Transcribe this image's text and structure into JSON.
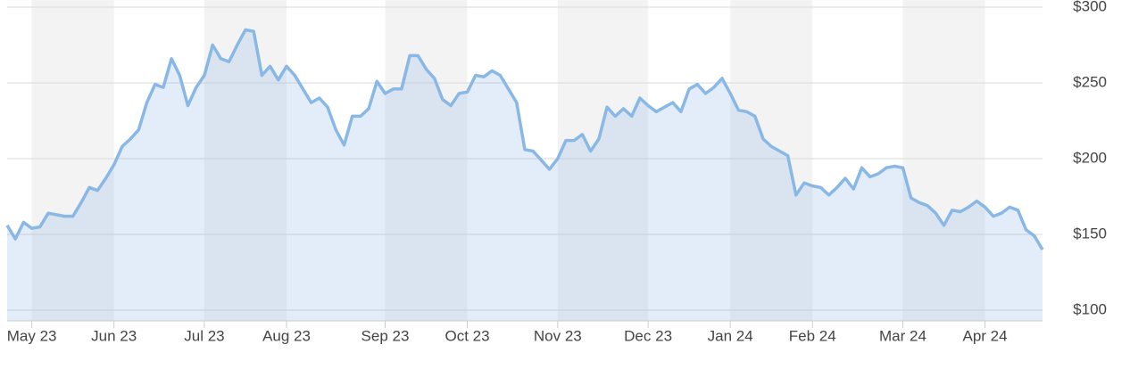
{
  "chart_data": {
    "type": "area-line",
    "categories": [
      null,
      null,
      null,
      "May 23",
      null,
      null,
      null,
      null,
      null,
      null,
      null,
      null,
      null,
      "Jun 23",
      null,
      null,
      null,
      null,
      null,
      null,
      null,
      null,
      null,
      null,
      "Jul 23",
      null,
      null,
      null,
      null,
      null,
      null,
      null,
      null,
      null,
      "Aug 23",
      null,
      null,
      null,
      null,
      null,
      null,
      null,
      null,
      null,
      null,
      null,
      "Sep 23",
      null,
      null,
      null,
      null,
      null,
      null,
      null,
      null,
      null,
      "Oct 23",
      null,
      null,
      null,
      null,
      null,
      null,
      null,
      null,
      null,
      null,
      "Nov 23",
      null,
      null,
      null,
      null,
      null,
      null,
      null,
      null,
      null,
      null,
      "Dec 23",
      null,
      null,
      null,
      null,
      null,
      null,
      null,
      null,
      null,
      "Jan 24",
      null,
      null,
      null,
      null,
      null,
      null,
      null,
      null,
      null,
      "Feb 24",
      null,
      null,
      null,
      null,
      null,
      null,
      null,
      null,
      null,
      null,
      "Mar 24",
      null,
      null,
      null,
      null,
      null,
      null,
      null,
      null,
      null,
      "Apr 24",
      null,
      null,
      null,
      null,
      null,
      null,
      null
    ],
    "values": [
      156,
      147,
      158,
      154,
      155,
      164,
      163,
      162,
      162,
      171,
      181,
      179,
      187,
      196,
      208,
      213,
      219,
      237,
      249,
      247,
      266,
      255,
      235,
      247,
      255,
      275,
      266,
      264,
      275,
      285,
      284,
      255,
      261,
      252,
      261,
      255,
      246,
      237,
      240,
      234,
      219,
      209,
      228,
      228,
      233,
      251,
      243,
      246,
      246,
      268,
      268,
      259,
      253,
      239,
      235,
      243,
      244,
      255,
      254,
      258,
      255,
      246,
      237,
      206,
      205,
      199,
      193,
      200,
      212,
      212,
      216,
      205,
      213,
      234,
      228,
      233,
      228,
      240,
      235,
      231,
      234,
      237,
      231,
      246,
      249,
      243,
      247,
      253,
      243,
      232,
      231,
      228,
      213,
      208,
      205,
      202,
      176,
      184,
      182,
      181,
      176,
      181,
      187,
      180,
      194,
      188,
      190,
      194,
      195,
      194,
      174,
      171,
      169,
      164,
      156,
      166,
      165,
      168,
      172,
      168,
      162,
      164,
      168,
      166,
      153,
      149,
      140
    ],
    "color": "#8ab8e6",
    "ylim": [
      100,
      300
    ],
    "yticks": [
      {
        "value": 100,
        "label": "$100"
      },
      {
        "value": 150,
        "label": "$150"
      },
      {
        "value": 200,
        "label": "$200"
      },
      {
        "value": 250,
        "label": "$250"
      },
      {
        "value": 300,
        "label": "$300"
      }
    ],
    "grid": true
  }
}
